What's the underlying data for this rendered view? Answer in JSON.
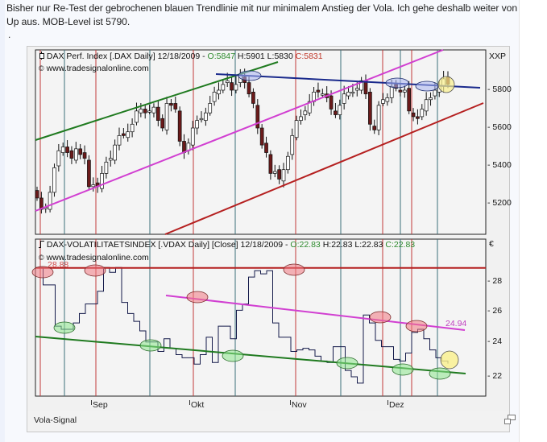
{
  "post": {
    "text_line1": "Bisher nur Re-Test der gebrochenen blauen Trendlinie mit nur minimalem Anstieg der Vola. Ich gehe deshalb weiter von",
    "text_line2": "Up aus. MOB-Level ist 5790.",
    "dot": "."
  },
  "price_panel": {
    "title": "DAX Perf. Index [.DAX  Daily] 12/18/2009 - ",
    "open_label": "O:5847",
    "high_label": " H:5901",
    "low_label": " L:5830",
    "close_label": " C:5831",
    "source": "www.tradesignalonline.com",
    "axis_unit": "XXP",
    "y_ticks": [
      "5800",
      "5600",
      "5400",
      "5200"
    ]
  },
  "vola_panel": {
    "title": "DAX-VOLATILITAETSINDEX [.VDAX  Daily] [Close] 12/18/2009 - ",
    "open_label": "O:22.83",
    "high_label": " H:22.83",
    "low_label": " L:22.83",
    "close_label": " C:22.83",
    "source": "www.tradesignalonline.com",
    "axis_unit": "€",
    "y_ticks": [
      "28",
      "26",
      "24",
      "22"
    ],
    "resistance_label": "28.88",
    "trend_label": "24.94"
  },
  "x_axis": {
    "months": [
      "Sep",
      "Okt",
      "Nov",
      "Dez"
    ]
  },
  "footer": {
    "label": "Vola-Signal",
    "expand_icon": "restore-window-icon"
  },
  "colors": {
    "green_trend": "#1f7a1f",
    "magenta_trend": "#d13fd1",
    "red_trend": "#b52020",
    "blue_trend": "#1a2a8c",
    "vline_red": "#c23a3a",
    "vline_teal": "#3d6f7a",
    "bear_candle": "#6b1a1a",
    "bull_candle": "#ffffff"
  },
  "chart_data": [
    {
      "type": "candlestick",
      "title": "DAX Perf. Index [.DAX Daily] 12/18/2009",
      "last_bar": {
        "open": 5847,
        "high": 5901,
        "low": 5830,
        "close": 5831
      },
      "ylabel": "XXP",
      "y_ticks": [
        5200,
        5400,
        5600,
        5800
      ],
      "ylim": [
        5120,
        6010
      ],
      "x_ticks": [
        "Sep",
        "Okt",
        "Nov",
        "Dez"
      ],
      "close_series": [
        5230,
        5170,
        5180,
        5260,
        5390,
        5480,
        5500,
        5470,
        5440,
        5490,
        5460,
        5440,
        5290,
        5300,
        5290,
        5360,
        5420,
        5440,
        5510,
        5560,
        5560,
        5580,
        5620,
        5690,
        5700,
        5680,
        5690,
        5710,
        5640,
        5600,
        5730,
        5720,
        5700,
        5530,
        5470,
        5520,
        5600,
        5640,
        5650,
        5680,
        5730,
        5790,
        5800,
        5830,
        5850,
        5800,
        5830,
        5880,
        5840,
        5780,
        5730,
        5600,
        5510,
        5470,
        5360,
        5370,
        5330,
        5380,
        5450,
        5560,
        5640,
        5660,
        5690,
        5740,
        5790,
        5790,
        5780,
        5760,
        5700,
        5670,
        5720,
        5780,
        5790,
        5790,
        5810,
        5850,
        5780,
        5620,
        5590,
        5720,
        5750,
        5760,
        5820,
        5810,
        5790,
        5800,
        5690,
        5660,
        5650,
        5700,
        5750,
        5760,
        5800,
        5820,
        5860,
        5831
      ],
      "trendlines": [
        {
          "name": "green upper channel",
          "color": "#1f7a1f"
        },
        {
          "name": "magenta channel",
          "color": "#d13fd1"
        },
        {
          "name": "red lower support",
          "color": "#b52020"
        },
        {
          "name": "blue resistance (broken)",
          "color": "#1a2a8c",
          "level_approx": 5800
        }
      ],
      "annotations": [
        "MOB-Level 5790"
      ]
    },
    {
      "type": "line",
      "title": "DAX-VOLATILITAETSINDEX [.VDAX Daily] [Close] 12/18/2009",
      "last_bar": {
        "open": 22.83,
        "high": 22.83,
        "low": 22.83,
        "close": 22.83
      },
      "ylabel": "€",
      "y_ticks": [
        22,
        24,
        26,
        28
      ],
      "ylim": [
        20.8,
        29.4
      ],
      "x_ticks": [
        "Sep",
        "Okt",
        "Nov",
        "Dez"
      ],
      "step_series": [
        28.9,
        27.8,
        27.8,
        25.2,
        25.0,
        25.0,
        25.4,
        26.0,
        26.6,
        26.6,
        27.4,
        28.9,
        28.6,
        28.9,
        26.7,
        26.0,
        25.5,
        24.9,
        24.2,
        24.2,
        23.6,
        24.4,
        23.8,
        23.4,
        23.2,
        23.2,
        22.8,
        23.4,
        24.5,
        22.9,
        25.2,
        25.2,
        24.4,
        26.2,
        26.6,
        28.3,
        28.7,
        28.5,
        28.7,
        25.4,
        24.5,
        24.5,
        23.6,
        23.7,
        23.8,
        23.7,
        23.3,
        23.0,
        22.9,
        23.9,
        23.9,
        22.4,
        22.0,
        21.6,
        25.9,
        25.4,
        24.3,
        23.9,
        23.9,
        23.1,
        23.0,
        23.5,
        24.8,
        25.0,
        24.4,
        23.7,
        23.2,
        23.0,
        22.83
      ],
      "resistance_level": 28.88,
      "downtrend_value": 24.94,
      "trendlines": [
        {
          "name": "red resistance",
          "value": 28.88,
          "color": "#b52020"
        },
        {
          "name": "magenta downtrend",
          "value_at_end": 24.94,
          "color": "#d13fd1"
        },
        {
          "name": "green support downtrend",
          "value_at_end": 22.2,
          "color": "#1f7a1f"
        }
      ]
    }
  ]
}
